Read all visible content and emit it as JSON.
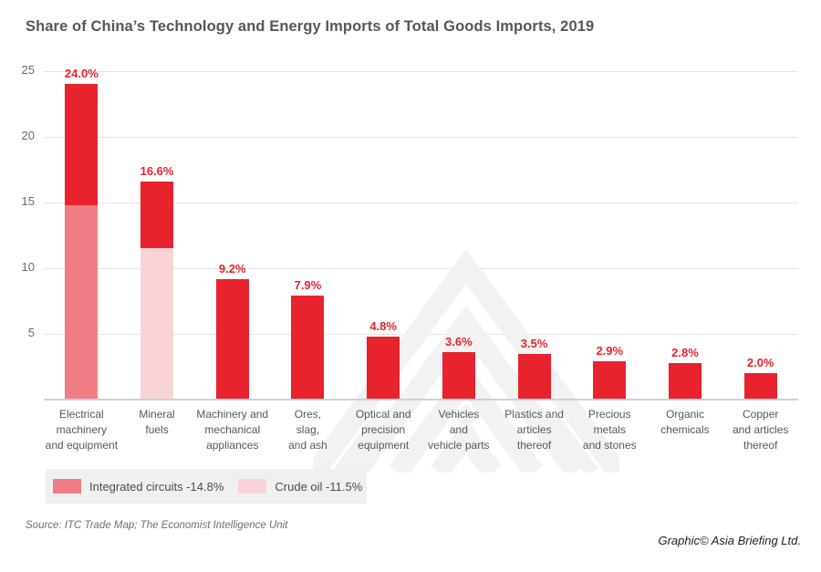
{
  "chart_data": {
    "type": "bar",
    "stacked": true,
    "title": "Share of China’s Technology and Energy Imports of Total Goods Imports, 2019",
    "xlabel": "",
    "ylabel": "",
    "ylim": [
      0,
      25
    ],
    "y_ticks": [
      5,
      10,
      15,
      20,
      25
    ],
    "grid": true,
    "legend_position": "bottom-left",
    "categories": [
      "Electrical machinery and equipment",
      "Mineral fuels",
      "Machinery and mechanical appliances",
      "Ores, slag, and ash",
      "Optical and precision equipment",
      "Vehicles and vehicle parts",
      "Plastics and articles thereof",
      "Precious metals and stones",
      "Organic chemicals",
      "Copper and articles thereof"
    ],
    "category_lines": [
      [
        "Electrical",
        "machinery",
        "and equipment"
      ],
      [
        "Mineral",
        "fuels"
      ],
      [
        "Machinery and",
        "mechanical",
        "appliances"
      ],
      [
        "Ores,",
        "slag,",
        "and ash"
      ],
      [
        "Optical and",
        "precision",
        "equipment"
      ],
      [
        "Vehicles",
        "and",
        "vehicle parts"
      ],
      [
        "Plastics and",
        "articles",
        "thereof"
      ],
      [
        "Precious",
        "metals",
        "and stones"
      ],
      [
        "Organic",
        "chemicals"
      ],
      [
        "Copper",
        "and articles",
        "thereof"
      ]
    ],
    "totals": [
      24.0,
      16.6,
      9.2,
      7.9,
      4.8,
      3.6,
      3.5,
      2.9,
      2.8,
      2.0
    ],
    "value_labels": [
      "24.0%",
      "16.6%",
      "9.2%",
      "7.9%",
      "4.8%",
      "3.6%",
      "3.5%",
      "2.9%",
      "2.8%",
      "2.0%"
    ],
    "sub_segments": [
      {
        "category_index": 0,
        "name": "Integrated circuits",
        "value": 14.8,
        "color": "#f07d85"
      },
      {
        "category_index": 1,
        "name": "Crude oil",
        "value": 11.5,
        "color": "#f8d4d8"
      }
    ]
  },
  "colors": {
    "bar_red": "#e8232e",
    "integrated_circuits_pink": "#f07d85",
    "crude_oil_pink": "#f8d4d8",
    "gridline": "#e4e4e4",
    "axis_baseline": "#d0d0d0",
    "watermark": "#f2f2f2",
    "title_gray": "#57575a",
    "legend_background": "#f0f0f0"
  },
  "legend": {
    "items": [
      {
        "label": "Integrated circuits -14.8%",
        "color": "#f07d85"
      },
      {
        "label": "Crude oil -11.5%",
        "color": "#f8d4d8"
      }
    ]
  },
  "footer": {
    "source": "Source: ITC Trade Map; The Economist Intelligence Unit",
    "credit": "Graphic© Asia Briefing Ltd."
  }
}
